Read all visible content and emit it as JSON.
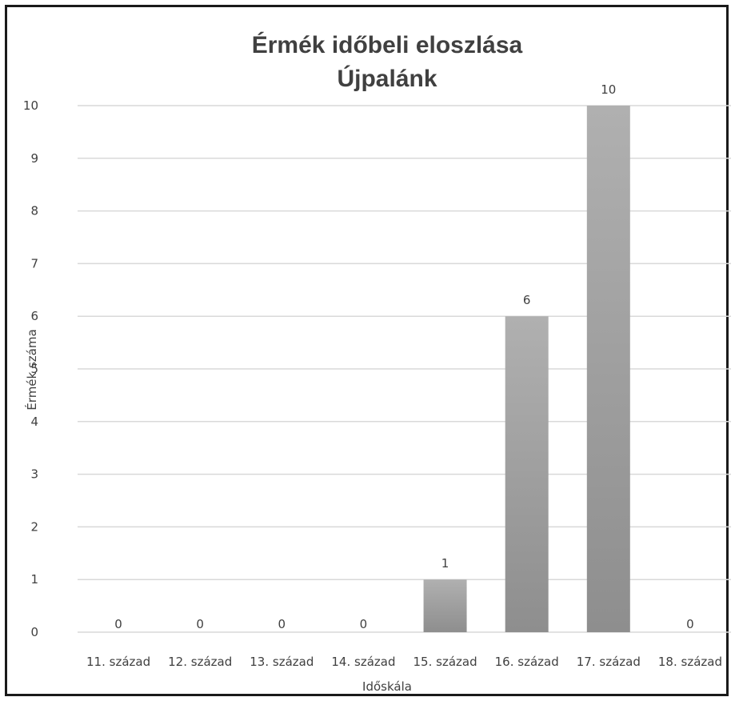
{
  "chart_data": {
    "type": "bar",
    "title": "Érmék időbeli eloszlása",
    "subtitle": "Újpalánk",
    "xlabel": "Időskála",
    "ylabel": "Érmék száma",
    "categories": [
      "11. század",
      "12. század",
      "13. század",
      "14. század",
      "15. század",
      "16. század",
      "17. század",
      "18. század"
    ],
    "values": [
      0,
      0,
      0,
      0,
      1,
      6,
      10,
      0
    ],
    "ylim": [
      0,
      10
    ],
    "yticks": [
      "0",
      "1",
      "2",
      "3",
      "4",
      "5",
      "6",
      "7",
      "8",
      "9",
      "10"
    ],
    "data_labels": [
      "0",
      "0",
      "0",
      "0",
      "1",
      "6",
      "10",
      "0"
    ],
    "grid": true,
    "legend": "none",
    "bar_color": "#a6a6a6",
    "bar_color_dark": "#8c8c8c",
    "gridline_color": "#d9d9d9",
    "text_color": "#404040"
  }
}
